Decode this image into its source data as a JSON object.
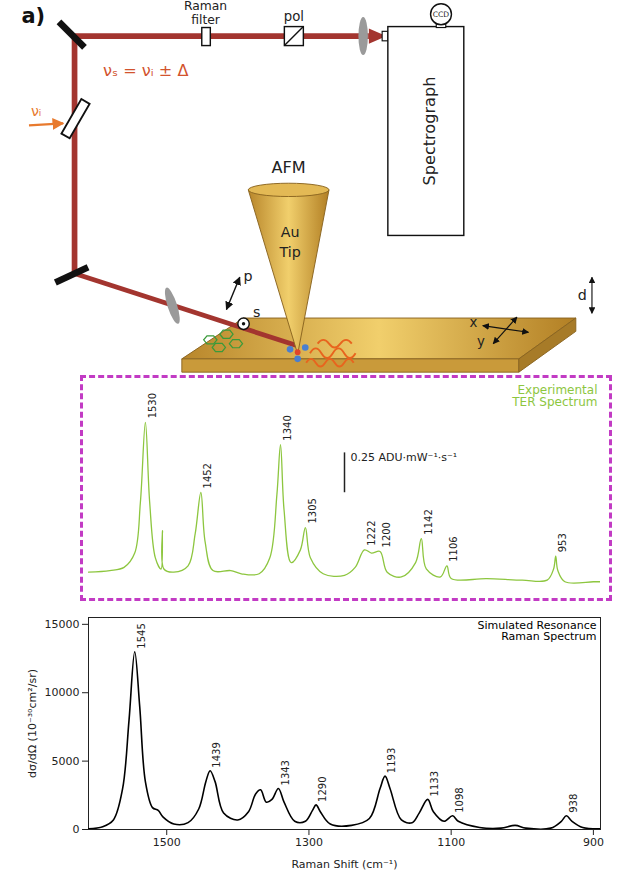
{
  "diagram": {
    "panel": "a)",
    "raman_filter": "Raman filter",
    "polarizer": "pol",
    "detector": "CCD",
    "spectrograph": "Spectrograph",
    "scattered": "νₛ = νᵢ ± Δ",
    "incident": "νᵢ",
    "microscope": "AFM",
    "tip": "Au Tip",
    "polarizations": [
      "p",
      "s"
    ],
    "scan_axes": [
      "x",
      "y"
    ],
    "distance": "d"
  },
  "chart_data": [
    {
      "type": "line",
      "title": "Experimental TER Spectrum",
      "color": "#8dc63f",
      "tick_labels": false,
      "x": [
        1610,
        1580,
        1560,
        1545,
        1537,
        1530,
        1524,
        1516,
        1508,
        1506,
        1504,
        1490,
        1470,
        1460,
        1452,
        1446,
        1435,
        1410,
        1395,
        1370,
        1355,
        1345,
        1340,
        1335,
        1325,
        1312,
        1305,
        1298,
        1280,
        1250,
        1235,
        1222,
        1212,
        1200,
        1190,
        1170,
        1150,
        1142,
        1135,
        1115,
        1106,
        1100,
        1050,
        1000,
        965,
        956,
        953,
        950,
        940,
        900,
        890
      ],
      "values": [
        0.06,
        0.07,
        0.09,
        0.18,
        0.5,
        1.0,
        0.5,
        0.15,
        0.08,
        0.32,
        0.08,
        0.06,
        0.1,
        0.3,
        0.56,
        0.25,
        0.07,
        0.07,
        0.05,
        0.05,
        0.15,
        0.55,
        0.86,
        0.45,
        0.12,
        0.2,
        0.34,
        0.15,
        0.05,
        0.04,
        0.09,
        0.2,
        0.18,
        0.19,
        0.06,
        0.03,
        0.12,
        0.27,
        0.08,
        0.03,
        0.1,
        0.02,
        0.02,
        0.01,
        0.01,
        0.08,
        0.16,
        0.07,
        0,
        0,
        0
      ],
      "xlim": [
        1610,
        890
      ],
      "ylim": [
        -0.08,
        1.25
      ],
      "scale_bar": {
        "value": 0.25,
        "label": "0.25 ADU·mW⁻¹·s⁻¹"
      },
      "peak_labels": [
        1530,
        1452,
        1340,
        1305,
        1222,
        1200,
        1142,
        1106,
        953
      ]
    },
    {
      "type": "line",
      "title": "Simulated Resonance Raman Spectrum",
      "color": "#000000",
      "x": [
        1610,
        1590,
        1575,
        1562,
        1553,
        1545,
        1538,
        1530,
        1520,
        1512,
        1505,
        1490,
        1470,
        1455,
        1445,
        1439,
        1432,
        1420,
        1400,
        1385,
        1375,
        1368,
        1360,
        1352,
        1343,
        1335,
        1320,
        1305,
        1295,
        1290,
        1284,
        1270,
        1240,
        1215,
        1200,
        1193,
        1186,
        1170,
        1155,
        1145,
        1133,
        1125,
        1110,
        1098,
        1090,
        1060,
        1030,
        1010,
        995,
        960,
        945,
        938,
        930,
        915,
        890
      ],
      "values": [
        50,
        200,
        700,
        3000,
        8000,
        13000,
        9000,
        3500,
        1600,
        1400,
        900,
        400,
        500,
        1500,
        3500,
        4300,
        3500,
        1200,
        700,
        1300,
        2600,
        2900,
        2000,
        2200,
        3000,
        2000,
        600,
        600,
        1400,
        1800,
        1300,
        400,
        300,
        800,
        3000,
        3900,
        3000,
        700,
        500,
        1200,
        2200,
        1300,
        600,
        1000,
        600,
        150,
        100,
        300,
        100,
        100,
        600,
        1000,
        600,
        150,
        50
      ],
      "xlim": [
        1610,
        890
      ],
      "ylim": [
        0,
        15500
      ],
      "xticks": [
        1500,
        1300,
        1100,
        900
      ],
      "yticks": [
        0,
        5000,
        10000,
        15000
      ],
      "xlabel": "Raman Shift (cm⁻¹)",
      "ylabel": "dσ/dΩ (10⁻³⁰cm²/sr)",
      "peak_labels": [
        1545,
        1439,
        1343,
        1290,
        1193,
        1133,
        1098,
        938
      ]
    }
  ]
}
